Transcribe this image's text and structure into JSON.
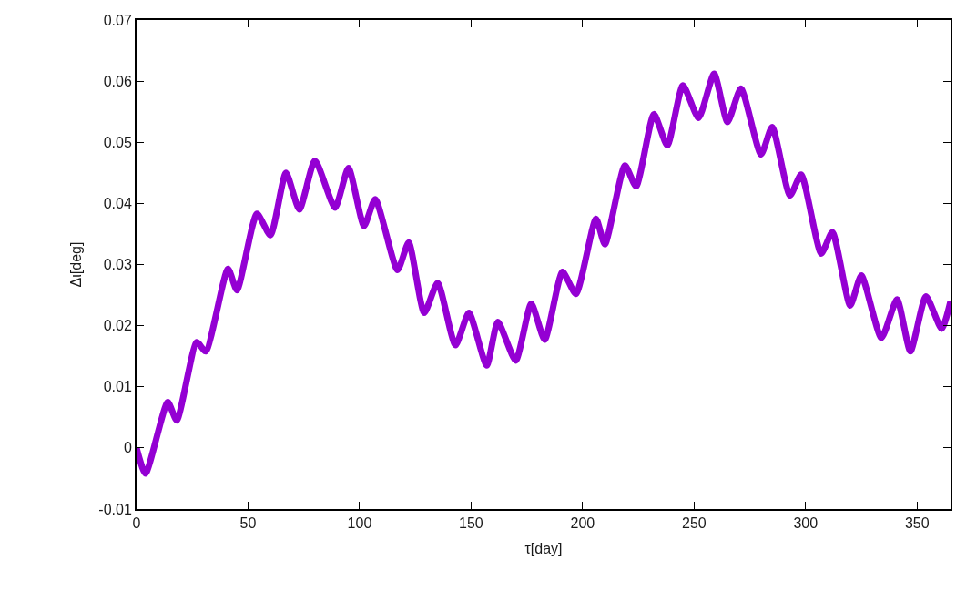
{
  "chart_data": {
    "type": "line",
    "xlabel": "τ[day]",
    "ylabel": "Δι[deg]",
    "xlim": [
      0,
      365
    ],
    "xticks": [
      0,
      50,
      100,
      150,
      200,
      250,
      300,
      350
    ],
    "ylim": [
      -0.01,
      0.07
    ],
    "yticks": [
      -0.01,
      0,
      0.01,
      0.02,
      0.03,
      0.04,
      0.05,
      0.06,
      0.07
    ],
    "marker": "none",
    "line_style": "solid",
    "series": [
      {
        "color": "#9400d3",
        "x": [
          0,
          4,
          14,
          18,
          27,
          31,
          41,
          45,
          54,
          60,
          67,
          73,
          80,
          89,
          95,
          102,
          107,
          117,
          122,
          129,
          135,
          143,
          149,
          157,
          162,
          170,
          177,
          183,
          191,
          197,
          206,
          210,
          219,
          224,
          232,
          238,
          245,
          252,
          259,
          265,
          271,
          280,
          285,
          293,
          298,
          307,
          312,
          320,
          325,
          334,
          341,
          347,
          354,
          361,
          365
        ],
        "values": [
          0,
          -0.0042,
          0.0075,
          0.0045,
          0.0173,
          0.0158,
          0.0293,
          0.0258,
          0.0383,
          0.0348,
          0.045,
          0.039,
          0.047,
          0.0393,
          0.0458,
          0.0363,
          0.0407,
          0.0291,
          0.0336,
          0.0221,
          0.027,
          0.0168,
          0.0221,
          0.0135,
          0.0206,
          0.0143,
          0.0236,
          0.0177,
          0.0288,
          0.0252,
          0.0375,
          0.0333,
          0.0462,
          0.0428,
          0.0546,
          0.0495,
          0.0593,
          0.054,
          0.0612,
          0.0533,
          0.0588,
          0.048,
          0.0525,
          0.0413,
          0.0447,
          0.0318,
          0.0353,
          0.0233,
          0.0282,
          0.018,
          0.0243,
          0.0158,
          0.0248,
          0.0195,
          0.024
        ]
      }
    ]
  }
}
